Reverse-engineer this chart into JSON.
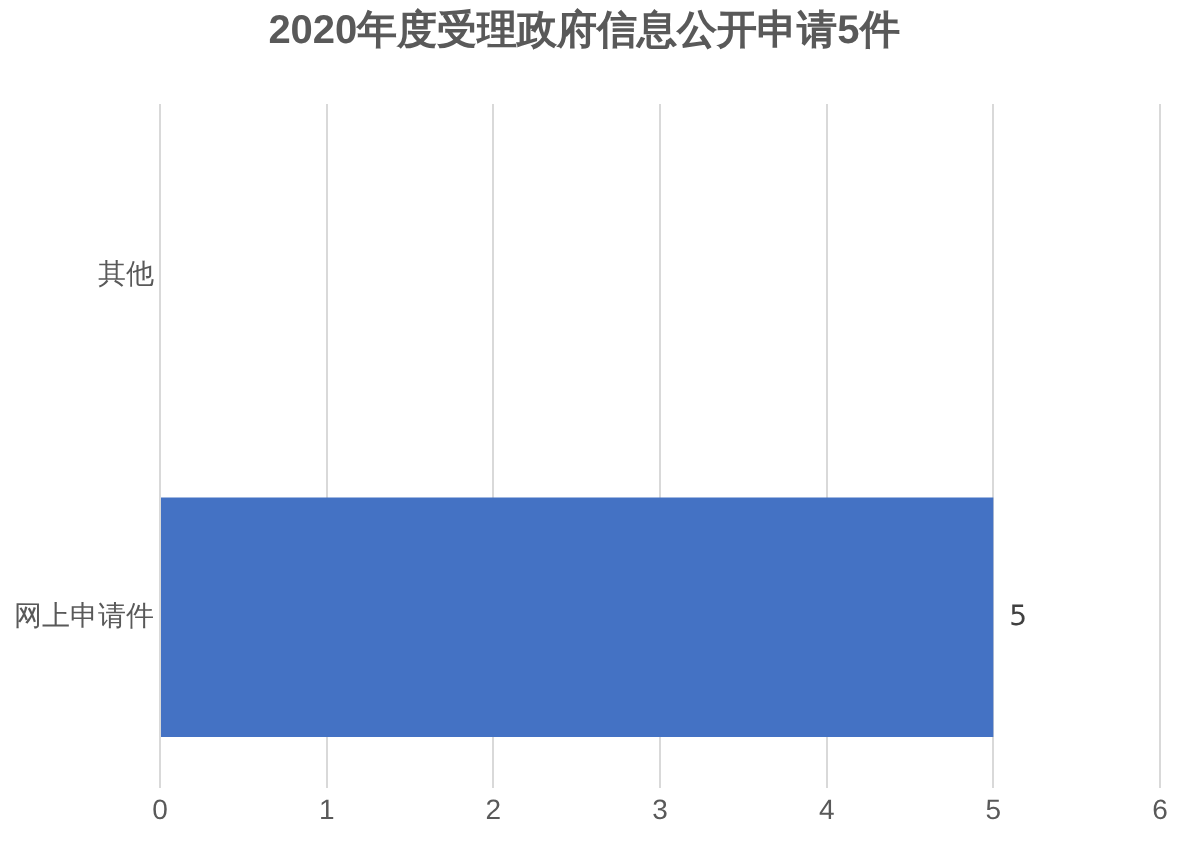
{
  "chart_data": {
    "type": "bar",
    "orientation": "horizontal",
    "title": "2020年度受理政府信息公开申请5件",
    "categories": [
      "其他",
      "网上申请件"
    ],
    "values": [
      0,
      5
    ],
    "value_labels": [
      null,
      "5"
    ],
    "color": "#4472c4",
    "xlim": [
      0,
      6
    ],
    "xticks": [
      0,
      1,
      2,
      3,
      4,
      5,
      6
    ],
    "grid": "x",
    "legend": false
  }
}
